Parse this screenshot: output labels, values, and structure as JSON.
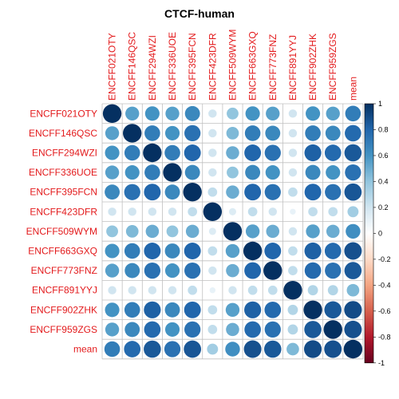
{
  "chart_data": {
    "type": "heatmap",
    "title": "CTCF-human",
    "labels": [
      "ENCFF021OTY",
      "ENCFF146QSC",
      "ENCFF294WZI",
      "ENCFF336UOE",
      "ENCFF395FCN",
      "ENCFF423DFR",
      "ENCFF509WYM",
      "ENCFF663GXQ",
      "ENCFF773FNZ",
      "ENCFF891YYJ",
      "ENCFF902ZHK",
      "ENCFF959ZGS",
      "mean"
    ],
    "matrix": [
      [
        1.0,
        0.55,
        0.6,
        0.55,
        0.65,
        0.2,
        0.4,
        0.6,
        0.55,
        0.2,
        0.6,
        0.55,
        0.7
      ],
      [
        0.55,
        1.0,
        0.7,
        0.6,
        0.75,
        0.2,
        0.45,
        0.7,
        0.65,
        0.2,
        0.7,
        0.65,
        0.78
      ],
      [
        0.6,
        0.7,
        1.0,
        0.7,
        0.8,
        0.2,
        0.5,
        0.8,
        0.75,
        0.2,
        0.82,
        0.78,
        0.85
      ],
      [
        0.55,
        0.6,
        0.7,
        1.0,
        0.65,
        0.2,
        0.4,
        0.65,
        0.6,
        0.2,
        0.65,
        0.6,
        0.75
      ],
      [
        0.65,
        0.75,
        0.8,
        0.65,
        1.0,
        0.25,
        0.5,
        0.8,
        0.75,
        0.25,
        0.8,
        0.75,
        0.86
      ],
      [
        0.2,
        0.2,
        0.2,
        0.2,
        0.25,
        1.0,
        0.15,
        0.25,
        0.2,
        0.1,
        0.25,
        0.25,
        0.35
      ],
      [
        0.4,
        0.45,
        0.5,
        0.4,
        0.5,
        0.15,
        1.0,
        0.55,
        0.5,
        0.2,
        0.55,
        0.5,
        0.62
      ],
      [
        0.6,
        0.7,
        0.8,
        0.65,
        0.8,
        0.25,
        0.55,
        1.0,
        0.8,
        0.25,
        0.82,
        0.78,
        0.88
      ],
      [
        0.55,
        0.65,
        0.75,
        0.6,
        0.75,
        0.2,
        0.5,
        0.8,
        1.0,
        0.25,
        0.78,
        0.75,
        0.85
      ],
      [
        0.2,
        0.2,
        0.2,
        0.2,
        0.25,
        0.1,
        0.2,
        0.25,
        0.25,
        1.0,
        0.3,
        0.3,
        0.45
      ],
      [
        0.6,
        0.7,
        0.82,
        0.65,
        0.8,
        0.25,
        0.55,
        0.82,
        0.78,
        0.3,
        1.0,
        0.85,
        0.9
      ],
      [
        0.55,
        0.65,
        0.78,
        0.6,
        0.75,
        0.25,
        0.5,
        0.78,
        0.75,
        0.3,
        0.85,
        1.0,
        0.88
      ],
      [
        0.7,
        0.78,
        0.85,
        0.75,
        0.86,
        0.35,
        0.62,
        0.88,
        0.85,
        0.45,
        0.9,
        0.88,
        1.0
      ]
    ],
    "colorbar": {
      "range": [
        -1,
        1
      ],
      "ticks": [
        "1",
        "0.8",
        "0.6",
        "0.4",
        "0.2",
        "0",
        "-0.2",
        "-0.4",
        "-0.6",
        "-0.8",
        "-1"
      ],
      "colors": [
        "#67001f",
        "#b2182b",
        "#d6604d",
        "#f4a582",
        "#fddbc7",
        "#ffffff",
        "#d1e5f0",
        "#92c5de",
        "#4393c3",
        "#2166ac",
        "#053061"
      ]
    },
    "grid": true,
    "label_color": "#e31a1c"
  }
}
